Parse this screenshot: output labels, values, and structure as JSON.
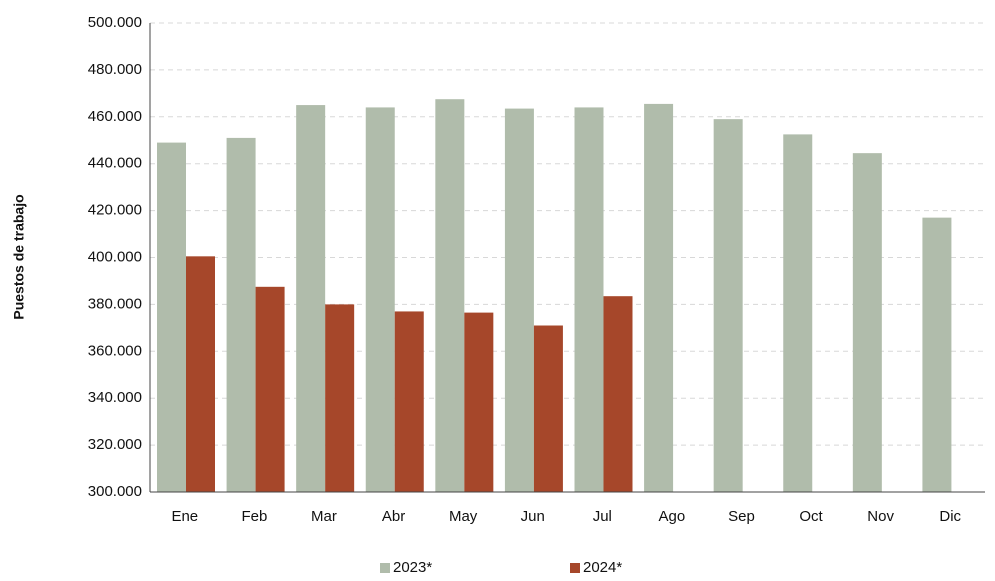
{
  "chart_data": {
    "type": "bar",
    "y_label": "Puestos de trabajo",
    "categories": [
      "Ene",
      "Feb",
      "Mar",
      "Abr",
      "May",
      "Jun",
      "Jul",
      "Ago",
      "Sep",
      "Oct",
      "Nov",
      "Dic"
    ],
    "series": [
      {
        "name": "2023*",
        "color": "#b0bcab",
        "values": [
          449000,
          451000,
          465000,
          464000,
          467500,
          463500,
          464000,
          465500,
          459000,
          452500,
          444500,
          417000
        ]
      },
      {
        "name": "2024*",
        "color": "#a6472a",
        "values": [
          400500,
          387500,
          380000,
          377000,
          376500,
          371000,
          383500,
          null,
          null,
          null,
          null,
          null
        ]
      }
    ],
    "ylim": [
      300000,
      500000
    ],
    "yticks": [
      {
        "value": 300000,
        "label": "300.000"
      },
      {
        "value": 320000,
        "label": "320.000"
      },
      {
        "value": 340000,
        "label": "340.000"
      },
      {
        "value": 360000,
        "label": "360.000"
      },
      {
        "value": 380000,
        "label": "380.000"
      },
      {
        "value": 400000,
        "label": "400.000"
      },
      {
        "value": 420000,
        "label": "420.000"
      },
      {
        "value": 440000,
        "label": "440.000"
      },
      {
        "value": 460000,
        "label": "460.000"
      },
      {
        "value": 480000,
        "label": "480.000"
      },
      {
        "value": 500000,
        "label": "500.000"
      }
    ],
    "grid": true,
    "legend": "bottom"
  }
}
